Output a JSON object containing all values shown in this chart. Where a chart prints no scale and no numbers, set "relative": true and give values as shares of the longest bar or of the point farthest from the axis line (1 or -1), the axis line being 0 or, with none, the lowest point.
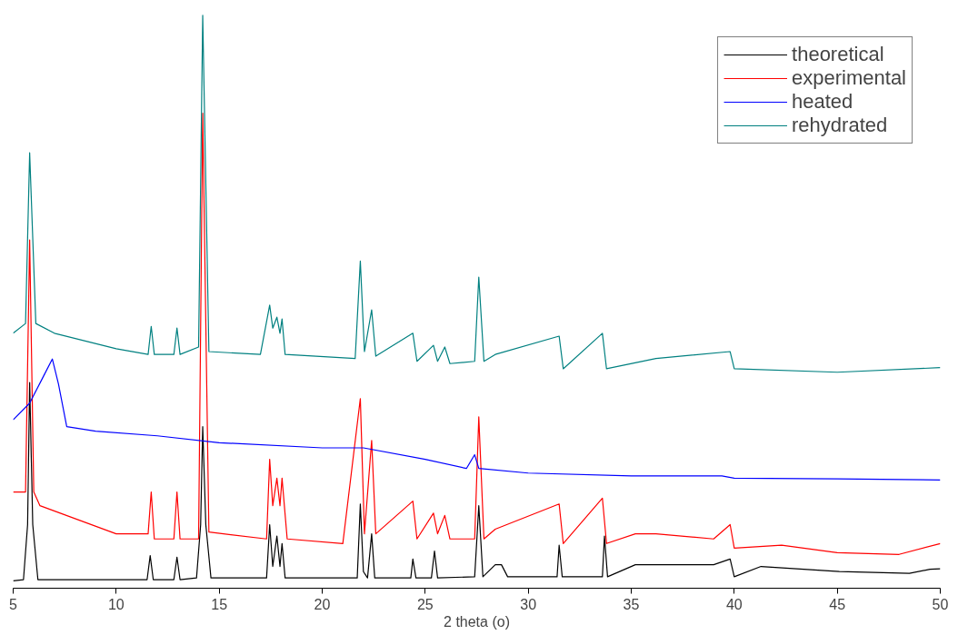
{
  "chart_data": {
    "type": "line",
    "relative": true,
    "xlabel": "2 theta (o)",
    "xlim": [
      5,
      50
    ],
    "xticks": [
      5,
      10,
      15,
      20,
      25,
      30,
      35,
      40,
      45,
      50
    ],
    "tick_labels": "x",
    "grid": false,
    "legend": "top right",
    "marker": "none",
    "line_style": "solid",
    "series": [
      {
        "name": "theoretical",
        "color": "#000000",
        "x": [
          5.0,
          5.5,
          5.7,
          5.8,
          5.95,
          6.2,
          11.5,
          11.65,
          11.8,
          12.8,
          12.95,
          13.1,
          13.9,
          14.1,
          14.2,
          14.35,
          14.6,
          17.3,
          17.45,
          17.6,
          17.8,
          17.95,
          18.05,
          18.2,
          21.7,
          21.85,
          22.0,
          22.2,
          22.4,
          22.55,
          24.3,
          24.4,
          24.55,
          25.3,
          25.45,
          25.6,
          27.4,
          27.6,
          27.8,
          28.4,
          28.7,
          29.0,
          31.4,
          31.5,
          31.65,
          33.6,
          33.7,
          33.85,
          35.2,
          39.0,
          39.8,
          40.0,
          41.3,
          45.1,
          48.5,
          49.5,
          50
        ],
        "values": [
          0.013,
          0.015,
          0.111,
          0.359,
          0.111,
          0.015,
          0.015,
          0.057,
          0.015,
          0.015,
          0.054,
          0.015,
          0.018,
          0.111,
          0.282,
          0.111,
          0.018,
          0.018,
          0.111,
          0.038,
          0.091,
          0.038,
          0.078,
          0.018,
          0.018,
          0.147,
          0.029,
          0.018,
          0.095,
          0.018,
          0.018,
          0.051,
          0.018,
          0.018,
          0.065,
          0.018,
          0.02,
          0.144,
          0.02,
          0.041,
          0.041,
          0.02,
          0.02,
          0.075,
          0.02,
          0.02,
          0.091,
          0.02,
          0.041,
          0.041,
          0.051,
          0.02,
          0.038,
          0.029,
          0.026,
          0.033,
          0.034
        ]
      },
      {
        "name": "experimental",
        "color": "#ff0000",
        "x": [
          5.0,
          5.6,
          5.8,
          6.0,
          6.3,
          10.0,
          11.55,
          11.7,
          11.85,
          12.8,
          12.95,
          13.1,
          14.0,
          14.2,
          14.5,
          17.3,
          17.45,
          17.6,
          17.8,
          17.95,
          18.05,
          18.3,
          21.0,
          21.85,
          22.05,
          22.4,
          22.6,
          24.4,
          24.6,
          25.4,
          25.6,
          25.95,
          26.2,
          27.4,
          27.6,
          27.85,
          28.4,
          31.5,
          31.7,
          33.6,
          33.8,
          35.2,
          36.2,
          39.0,
          39.8,
          40.0,
          42.3,
          45.0,
          48.0,
          50.0
        ],
        "values": [
          0.168,
          0.168,
          0.608,
          0.168,
          0.144,
          0.095,
          0.095,
          0.168,
          0.086,
          0.086,
          0.168,
          0.086,
          0.086,
          0.829,
          0.098,
          0.086,
          0.225,
          0.144,
          0.192,
          0.144,
          0.192,
          0.086,
          0.078,
          0.331,
          0.095,
          0.258,
          0.095,
          0.152,
          0.086,
          0.131,
          0.095,
          0.127,
          0.086,
          0.086,
          0.299,
          0.086,
          0.103,
          0.147,
          0.078,
          0.157,
          0.078,
          0.095,
          0.095,
          0.086,
          0.111,
          0.07,
          0.075,
          0.062,
          0.059,
          0.078
        ]
      },
      {
        "name": "heated",
        "color": "#0000ff",
        "x": [
          5.0,
          5.8,
          6.5,
          6.9,
          7.2,
          7.6,
          9.0,
          12.0,
          15.0,
          20.0,
          22.0,
          25.0,
          27.0,
          27.4,
          27.6,
          30.0,
          35.0,
          39.4,
          40.0,
          45.0,
          50.0
        ],
        "values": [
          0.294,
          0.323,
          0.372,
          0.4,
          0.356,
          0.282,
          0.274,
          0.266,
          0.254,
          0.245,
          0.245,
          0.225,
          0.209,
          0.233,
          0.209,
          0.201,
          0.196,
          0.196,
          0.192,
          0.191,
          0.189
        ]
      },
      {
        "name": "rehydrated",
        "color": "#008080",
        "x": [
          5.0,
          5.6,
          5.8,
          6.1,
          7.0,
          10.0,
          11.55,
          11.7,
          11.85,
          12.8,
          12.95,
          13.1,
          14.0,
          14.2,
          14.5,
          17.0,
          17.45,
          17.6,
          17.8,
          17.95,
          18.05,
          18.2,
          21.6,
          21.85,
          22.05,
          22.4,
          22.6,
          24.4,
          24.6,
          25.4,
          25.6,
          25.95,
          26.2,
          27.4,
          27.6,
          27.85,
          28.4,
          31.5,
          31.7,
          33.6,
          33.8,
          36.2,
          39.8,
          40.0,
          45.0,
          50.0
        ],
        "values": [
          0.445,
          0.462,
          0.76,
          0.462,
          0.445,
          0.418,
          0.408,
          0.457,
          0.408,
          0.408,
          0.454,
          0.408,
          0.421,
          1.0,
          0.413,
          0.408,
          0.494,
          0.454,
          0.473,
          0.445,
          0.47,
          0.408,
          0.401,
          0.571,
          0.413,
          0.486,
          0.405,
          0.445,
          0.396,
          0.424,
          0.396,
          0.421,
          0.392,
          0.396,
          0.543,
          0.396,
          0.408,
          0.44,
          0.383,
          0.445,
          0.383,
          0.401,
          0.413,
          0.383,
          0.377,
          0.385
        ]
      }
    ]
  }
}
